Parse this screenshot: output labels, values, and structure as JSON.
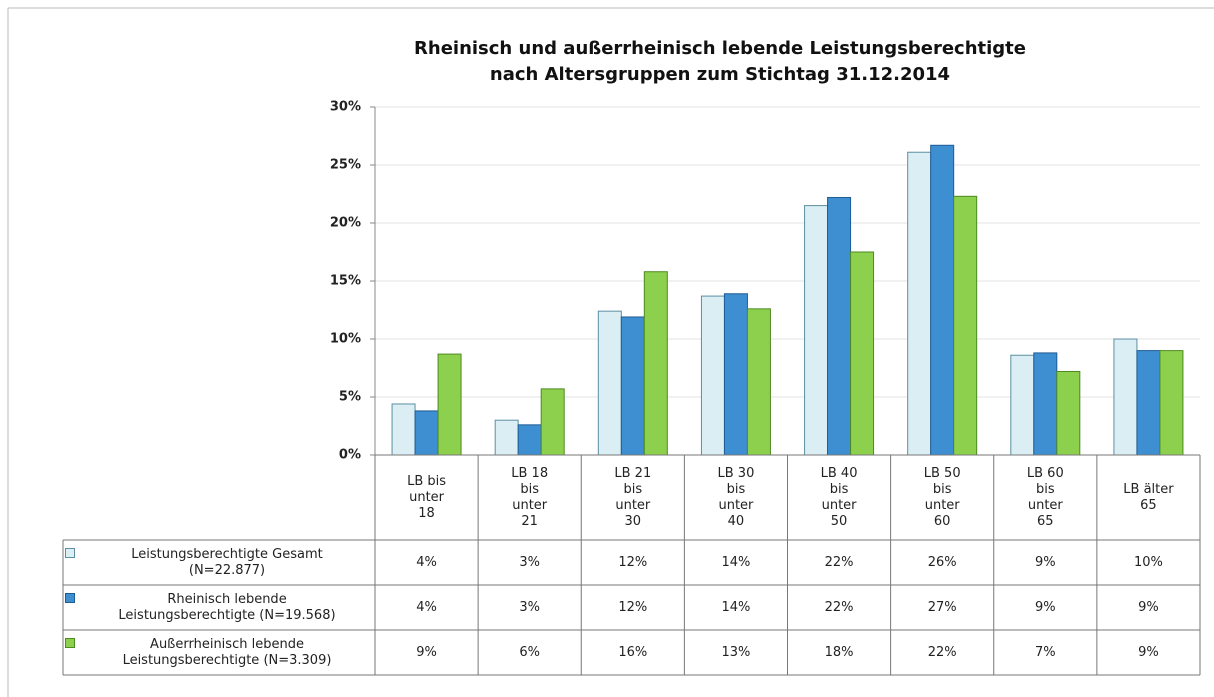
{
  "chart_data": {
    "type": "bar",
    "title": "Rheinisch und außerrheinisch lebende Leistungsberechtigte\nnach Altersgruppen zum Stichtag 31.12.2014",
    "categories": [
      "LB bis\nunter\n18",
      "LB 18\nbis\nunter\n21",
      "LB 21\nbis\nunter\n30",
      "LB 30\nbis\nunter\n40",
      "LB 40\nbis\nunter\n50",
      "LB 50\nbis\nunter\n60",
      "LB 60\nbis\nunter\n65",
      "LB älter\n65"
    ],
    "series": [
      {
        "name": "Leistungsberechtigte Gesamt\n(N=22.877)",
        "color": "#dbeef4",
        "border": "#5c8fa3",
        "values": [
          4.4,
          3.0,
          12.4,
          13.7,
          21.5,
          26.1,
          8.6,
          10.0
        ],
        "value_labels": [
          "4%",
          "3%",
          "12%",
          "14%",
          "22%",
          "26%",
          "9%",
          "10%"
        ]
      },
      {
        "name": "Rheinisch lebende\nLeistungsberechtigte (N=19.568)",
        "color": "#3d8fd1",
        "border": "#1f5c94",
        "values": [
          3.8,
          2.6,
          11.9,
          13.9,
          22.2,
          26.7,
          8.8,
          9.0
        ],
        "value_labels": [
          "4%",
          "3%",
          "12%",
          "14%",
          "22%",
          "27%",
          "9%",
          "9%"
        ]
      },
      {
        "name": "Außerrheinisch lebende\nLeistungsberechtigte (N=3.309)",
        "color": "#8dd04e",
        "border": "#4d8a22",
        "values": [
          8.7,
          5.7,
          15.8,
          12.6,
          17.5,
          22.3,
          7.2,
          9.0
        ],
        "value_labels": [
          "9%",
          "6%",
          "16%",
          "13%",
          "18%",
          "22%",
          "7%",
          "9%"
        ]
      }
    ],
    "ylim": [
      0,
      30
    ],
    "yticks": [
      {
        "value": 0,
        "label": "0%"
      },
      {
        "value": 5,
        "label": "5%"
      },
      {
        "value": 10,
        "label": "10%"
      },
      {
        "value": 15,
        "label": "15%"
      },
      {
        "value": 20,
        "label": "20%"
      },
      {
        "value": 25,
        "label": "25%"
      },
      {
        "value": 30,
        "label": "30%"
      }
    ],
    "grid": true
  }
}
